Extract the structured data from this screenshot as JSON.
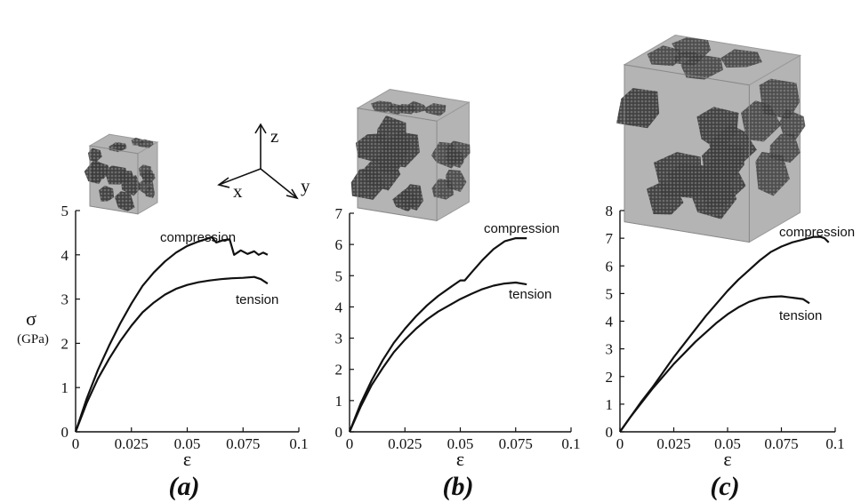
{
  "colors": {
    "curve": "#111111",
    "grain": "#4a4a4a",
    "grain_boundary": "#b4b4b4",
    "background": "#ffffff"
  },
  "y_axis_label": {
    "symbol": "σ",
    "unit": "(GPa)"
  },
  "triad": {
    "x": "x",
    "y": "y",
    "z": "z"
  },
  "chart_data": [
    {
      "type": "line",
      "panel_label": "(a)",
      "xlabel": "ε",
      "xlim": [
        0,
        0.1
      ],
      "ylim": [
        0,
        5
      ],
      "xticks": [
        "0",
        "0.025",
        "0.05",
        "0.075",
        "0.1"
      ],
      "yticks": [
        "0",
        "1",
        "2",
        "3",
        "4",
        "5"
      ],
      "grid": false,
      "series": [
        {
          "name": "compression",
          "x": [
            0,
            0.005,
            0.01,
            0.015,
            0.02,
            0.025,
            0.03,
            0.035,
            0.04,
            0.045,
            0.05,
            0.055,
            0.058,
            0.061,
            0.063,
            0.066,
            0.069,
            0.071,
            0.074,
            0.077,
            0.08,
            0.082,
            0.084,
            0.086
          ],
          "y": [
            0,
            0.75,
            1.4,
            1.95,
            2.45,
            2.9,
            3.3,
            3.6,
            3.85,
            4.05,
            4.2,
            4.3,
            4.35,
            4.4,
            4.28,
            4.33,
            4.35,
            4.0,
            4.1,
            4.02,
            4.08,
            4.0,
            4.05,
            4.0
          ]
        },
        {
          "name": "tension",
          "x": [
            0,
            0.005,
            0.01,
            0.015,
            0.02,
            0.025,
            0.03,
            0.035,
            0.04,
            0.045,
            0.05,
            0.055,
            0.06,
            0.065,
            0.07,
            0.075,
            0.08,
            0.083,
            0.086
          ],
          "y": [
            0,
            0.65,
            1.2,
            1.65,
            2.05,
            2.4,
            2.7,
            2.92,
            3.1,
            3.23,
            3.32,
            3.38,
            3.42,
            3.45,
            3.47,
            3.48,
            3.5,
            3.45,
            3.35
          ]
        }
      ]
    },
    {
      "type": "line",
      "panel_label": "(b)",
      "xlabel": "ε",
      "xlim": [
        0,
        0.1
      ],
      "ylim": [
        0,
        7
      ],
      "xticks": [
        "0",
        "0.025",
        "0.05",
        "0.075",
        "0.1"
      ],
      "yticks": [
        "0",
        "1",
        "2",
        "3",
        "4",
        "5",
        "6",
        "7"
      ],
      "grid": false,
      "series": [
        {
          "name": "compression",
          "x": [
            0,
            0.005,
            0.01,
            0.015,
            0.02,
            0.025,
            0.03,
            0.035,
            0.04,
            0.045,
            0.05,
            0.052,
            0.055,
            0.06,
            0.065,
            0.07,
            0.075,
            0.078,
            0.08
          ],
          "y": [
            0,
            0.9,
            1.65,
            2.3,
            2.85,
            3.3,
            3.7,
            4.05,
            4.35,
            4.6,
            4.85,
            4.85,
            5.1,
            5.5,
            5.85,
            6.1,
            6.2,
            6.2,
            6.2
          ]
        },
        {
          "name": "tension",
          "x": [
            0,
            0.005,
            0.01,
            0.015,
            0.02,
            0.025,
            0.03,
            0.035,
            0.04,
            0.045,
            0.05,
            0.055,
            0.06,
            0.065,
            0.07,
            0.075,
            0.08
          ],
          "y": [
            0,
            0.8,
            1.5,
            2.05,
            2.55,
            2.95,
            3.3,
            3.6,
            3.85,
            4.05,
            4.25,
            4.42,
            4.57,
            4.68,
            4.75,
            4.78,
            4.72
          ]
        }
      ]
    },
    {
      "type": "line",
      "panel_label": "(c)",
      "xlabel": "ε",
      "xlim": [
        0,
        0.1
      ],
      "ylim": [
        0,
        8
      ],
      "xticks": [
        "0",
        "0.025",
        "0.05",
        "0.075",
        "0.1"
      ],
      "yticks": [
        "0",
        "1",
        "2",
        "3",
        "4",
        "5",
        "6",
        "7",
        "8"
      ],
      "grid": false,
      "series": [
        {
          "name": "compression",
          "x": [
            0,
            0.005,
            0.01,
            0.015,
            0.02,
            0.025,
            0.03,
            0.035,
            0.04,
            0.045,
            0.05,
            0.055,
            0.06,
            0.065,
            0.07,
            0.075,
            0.08,
            0.085,
            0.09,
            0.093,
            0.095,
            0.097
          ],
          "y": [
            0,
            0.55,
            1.1,
            1.6,
            2.15,
            2.7,
            3.2,
            3.7,
            4.2,
            4.65,
            5.1,
            5.5,
            5.85,
            6.2,
            6.5,
            6.7,
            6.85,
            6.95,
            7.05,
            7.05,
            7.0,
            6.85
          ]
        },
        {
          "name": "tension",
          "x": [
            0,
            0.005,
            0.01,
            0.015,
            0.02,
            0.025,
            0.03,
            0.035,
            0.04,
            0.045,
            0.05,
            0.055,
            0.06,
            0.065,
            0.07,
            0.075,
            0.08,
            0.085,
            0.088
          ],
          "y": [
            0,
            0.55,
            1.05,
            1.55,
            2.0,
            2.45,
            2.85,
            3.25,
            3.6,
            3.95,
            4.25,
            4.5,
            4.7,
            4.83,
            4.88,
            4.9,
            4.85,
            4.8,
            4.65
          ]
        }
      ]
    }
  ]
}
